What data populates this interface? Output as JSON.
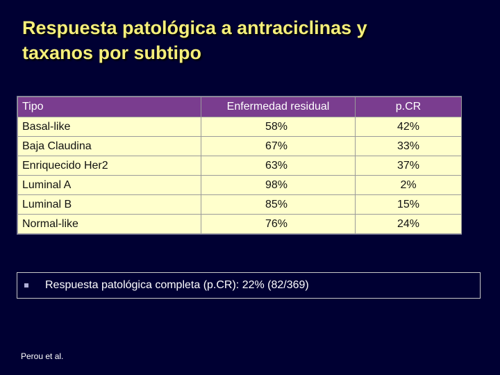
{
  "slide": {
    "title_line1": "Respuesta patológica a antraciclinas y",
    "title_line2": "taxanos por subtipo",
    "table": {
      "headers": [
        "Tipo",
        "Enfermedad residual",
        "p.CR"
      ],
      "rows": [
        [
          "Basal-like",
          "58%",
          "42%"
        ],
        [
          "Baja Claudina",
          "67%",
          "33%"
        ],
        [
          "Enriquecido Her2",
          "63%",
          "37%"
        ],
        [
          "Luminal A",
          "98%",
          "2%"
        ],
        [
          "Luminal B",
          "85%",
          "15%"
        ],
        [
          "Normal-like",
          "76%",
          "24%"
        ]
      ]
    },
    "note": "Respuesta patológica completa (p.CR): 22% (82/369)",
    "source": "Perou et al."
  },
  "colors": {
    "background": "#000033",
    "title": "#f5ef7a",
    "header_bg": "#7a3d8f",
    "cell_bg": "#ffffcc"
  }
}
